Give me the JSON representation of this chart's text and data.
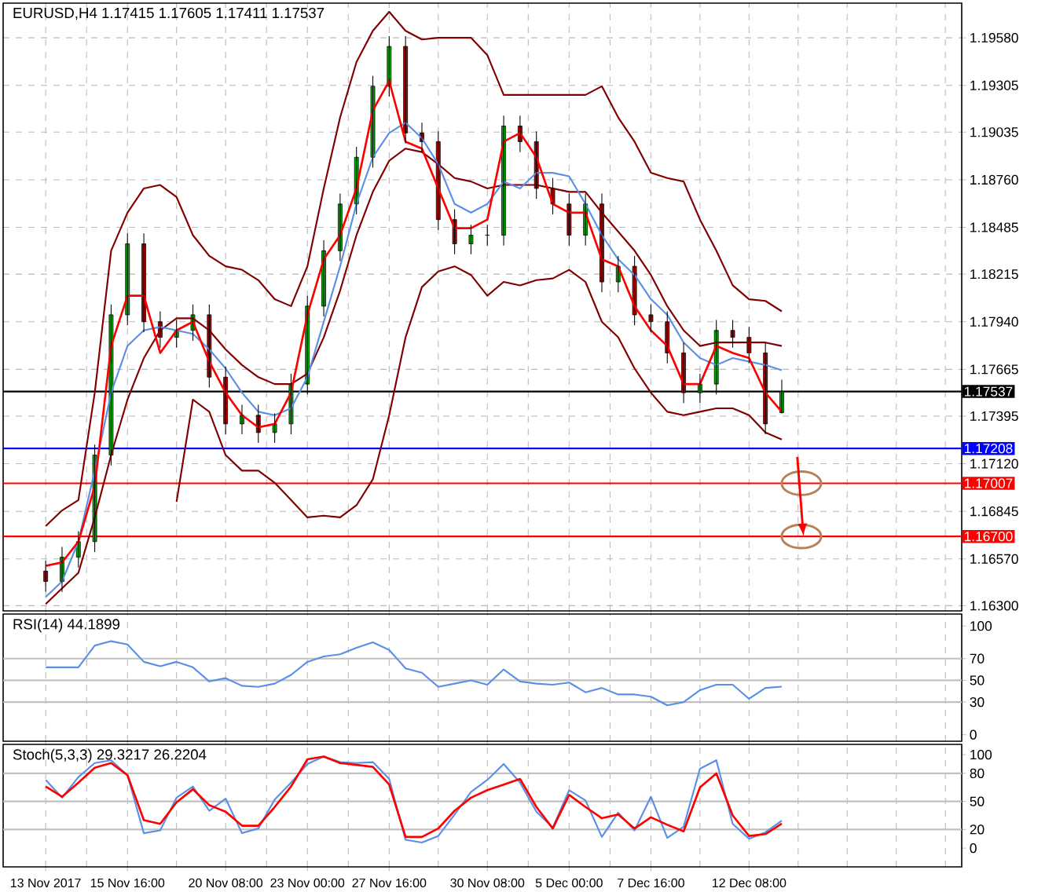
{
  "chart_data": [
    {
      "type": "candlestick",
      "title": "EURUSD,H4  1.17415 1.17605 1.17411 1.17537",
      "categories": [
        null,
        null,
        null,
        null,
        null,
        null,
        null,
        null,
        null,
        null,
        null,
        null,
        null,
        null,
        null,
        null,
        null,
        null,
        null,
        null,
        null,
        null,
        null,
        null,
        null,
        null,
        null,
        null,
        null,
        null,
        null,
        null,
        null,
        null,
        null,
        null,
        null,
        null,
        null,
        null,
        null,
        null,
        null,
        null,
        null,
        null
      ],
      "ohlc": [
        [
          1.165,
          1.1656,
          1.1638,
          1.1644
        ],
        [
          1.1644,
          1.1664,
          1.1638,
          1.1658
        ],
        [
          1.1658,
          1.1673,
          1.1652,
          1.1667
        ],
        [
          1.1667,
          1.1723,
          1.1661,
          1.1717
        ],
        [
          1.1717,
          1.1804,
          1.1711,
          1.1798
        ],
        [
          1.1798,
          1.1845,
          1.1792,
          1.1839
        ],
        [
          1.1839,
          1.1845,
          1.1788,
          1.1794
        ],
        [
          1.1794,
          1.18,
          1.1779,
          1.1785
        ],
        [
          1.1785,
          1.1795,
          1.1779,
          1.1789
        ],
        [
          1.1789,
          1.1804,
          1.1783,
          1.1798
        ],
        [
          1.1798,
          1.1804,
          1.1756,
          1.1762
        ],
        [
          1.1762,
          1.1768,
          1.1729,
          1.1735
        ],
        [
          1.1735,
          1.1746,
          1.1729,
          1.174
        ],
        [
          1.174,
          1.1746,
          1.1724,
          1.173
        ],
        [
          1.173,
          1.1741,
          1.1724,
          1.1735
        ],
        [
          1.1735,
          1.1764,
          1.1729,
          1.1758
        ],
        [
          1.1758,
          1.1809,
          1.1752,
          1.1803
        ],
        [
          1.1803,
          1.1841,
          1.1797,
          1.1835
        ],
        [
          1.1835,
          1.1868,
          1.1829,
          1.1862
        ],
        [
          1.1862,
          1.1895,
          1.1856,
          1.1889
        ],
        [
          1.1889,
          1.1936,
          1.1883,
          1.193
        ],
        [
          1.193,
          1.1959,
          1.1924,
          1.1953
        ],
        [
          1.1953,
          1.1959,
          1.1897,
          1.1903
        ],
        [
          1.1903,
          1.1909,
          1.1892,
          1.1898
        ],
        [
          1.1898,
          1.1904,
          1.1847,
          1.1853
        ],
        [
          1.1853,
          1.1859,
          1.1833,
          1.1839
        ],
        [
          1.1839,
          1.185,
          1.1833,
          1.1844
        ],
        [
          1.1844,
          1.185,
          1.1838,
          1.1844
        ],
        [
          1.1844,
          1.1913,
          1.1838,
          1.1907
        ],
        [
          1.1907,
          1.1913,
          1.1892,
          1.1898
        ],
        [
          1.1898,
          1.1904,
          1.1865,
          1.1871
        ],
        [
          1.1871,
          1.1877,
          1.1856,
          1.1862
        ],
        [
          1.1862,
          1.1868,
          1.1838,
          1.1844
        ],
        [
          1.1844,
          1.1868,
          1.1838,
          1.1862
        ],
        [
          1.1862,
          1.1868,
          1.1811,
          1.1817
        ],
        [
          1.1817,
          1.1832,
          1.1811,
          1.1826
        ],
        [
          1.1826,
          1.1832,
          1.1792,
          1.1798
        ],
        [
          1.1798,
          1.1804,
          1.1788,
          1.1794
        ],
        [
          1.1794,
          1.18,
          1.177,
          1.1776
        ],
        [
          1.1776,
          1.1782,
          1.1747,
          1.1753
        ],
        [
          1.1753,
          1.1764,
          1.1747,
          1.1758
        ],
        [
          1.1758,
          1.1795,
          1.1752,
          1.1789
        ],
        [
          1.1789,
          1.1795,
          1.1779,
          1.1785
        ],
        [
          1.1785,
          1.1791,
          1.177,
          1.1776
        ],
        [
          1.1776,
          1.1782,
          1.1729,
          1.1735
        ],
        [
          1.17415,
          1.17605,
          1.17411,
          1.17537
        ]
      ],
      "series": [
        {
          "type": "line",
          "color": "#800000",
          "values": [
            1.1676,
            1.1685,
            1.1691,
            1.1753,
            1.1835,
            1.1857,
            1.1871,
            1.1873,
            1.1866,
            1.1844,
            1.1832,
            1.1826,
            1.1824,
            1.1818,
            1.1807,
            1.1803,
            1.1826,
            1.1871,
            1.1912,
            1.1944,
            1.1962,
            1.1973,
            1.1962,
            1.1957,
            1.1958,
            1.1958,
            1.1958,
            1.1948,
            1.1925,
            1.1925,
            1.1925,
            1.1925,
            1.1925,
            1.1925,
            1.193,
            1.1912,
            1.1898,
            1.188,
            1.1877,
            1.1875,
            1.1853,
            1.1835,
            1.1815,
            1.1807,
            1.1806,
            1.18
          ]
        },
        {
          "type": "line",
          "color": "#800000",
          "values": [
            1.1631,
            1.164,
            1.1649,
            1.1681,
            1.1717,
            1.1749,
            1.1773,
            1.1789,
            1.1796,
            1.1796,
            1.1789,
            1.1778,
            1.1769,
            1.1762,
            1.1758,
            1.1758,
            1.1764,
            1.1785,
            1.1812,
            1.1844,
            1.1869,
            1.1887,
            1.1894,
            1.1892,
            1.1885,
            1.1877,
            1.1875,
            1.1871,
            1.1873,
            1.1873,
            1.1873,
            1.1871,
            1.1869,
            1.1869,
            1.1857,
            1.1846,
            1.1835,
            1.1821,
            1.1803,
            1.1789,
            1.178,
            1.1782,
            1.1782,
            1.1782,
            1.1782,
            1.178
          ]
        },
        {
          "type": "line",
          "color": "#800000",
          "values": [
            null,
            null,
            null,
            null,
            null,
            null,
            null,
            null,
            1.169,
            1.1749,
            1.1742,
            1.1717,
            1.1708,
            1.1708,
            1.1701,
            1.1691,
            1.1681,
            1.1682,
            1.1681,
            1.1688,
            1.1703,
            1.174,
            1.1785,
            1.1814,
            1.1823,
            1.1826,
            1.1821,
            1.1809,
            1.1817,
            1.1815,
            1.1818,
            1.1819,
            1.1824,
            1.1817,
            1.1794,
            1.1785,
            1.1767,
            1.1753,
            1.1742,
            1.174,
            1.1742,
            1.1744,
            1.1744,
            1.174,
            1.173,
            1.1726
          ]
        },
        {
          "type": "line",
          "color": "#5a8fe6",
          "values": [
            1.1635,
            1.1644,
            1.1667,
            1.1708,
            1.1753,
            1.178,
            1.1789,
            1.1791,
            1.1789,
            1.1787,
            1.1778,
            1.1767,
            1.1753,
            1.1742,
            1.174,
            1.1744,
            1.1762,
            1.1794,
            1.1826,
            1.1862,
            1.1889,
            1.1903,
            1.1909,
            1.19,
            1.1885,
            1.1862,
            1.1857,
            1.1862,
            1.1875,
            1.1871,
            1.188,
            1.188,
            1.1878,
            1.1862,
            1.1844,
            1.183,
            1.1821,
            1.1807,
            1.1798,
            1.1782,
            1.1773,
            1.1769,
            1.1773,
            1.1771,
            1.1769,
            1.1766
          ]
        },
        {
          "type": "line",
          "color": "#ff0000",
          "values": [
            1.1653,
            1.1655,
            1.1667,
            1.1699,
            1.178,
            1.1809,
            1.1809,
            1.1776,
            1.1789,
            1.1794,
            1.1771,
            1.1753,
            1.174,
            1.1733,
            1.1735,
            1.1753,
            1.1798,
            1.183,
            1.1844,
            1.1871,
            1.1916,
            1.1933,
            1.1898,
            1.1894,
            1.1871,
            1.1848,
            1.1848,
            1.1853,
            1.1898,
            1.1903,
            1.1889,
            1.1862,
            1.1857,
            1.1857,
            1.183,
            1.1826,
            1.1803,
            1.1789,
            1.178,
            1.1758,
            1.1758,
            1.178,
            1.1776,
            1.1773,
            1.1753,
            1.1742
          ]
        }
      ],
      "ref_lines": [
        {
          "axis": "y",
          "value": 1.17208,
          "label": "1.17208",
          "color": "#0000ff"
        },
        {
          "axis": "y",
          "value": 1.17007,
          "label": "1.17007",
          "color": "#ff0000"
        },
        {
          "axis": "y",
          "value": 1.167,
          "label": "1.16700",
          "color": "#ff0000"
        },
        {
          "axis": "y",
          "value": 1.17537,
          "label": "1.17537",
          "color": "#000000"
        }
      ],
      "ylim": [
        1.1627,
        1.1978
      ],
      "yticks": [
        {
          "value": 1.163,
          "label": "1.16300"
        },
        {
          "value": 1.1657,
          "label": "1.16570"
        },
        {
          "value": 1.16845,
          "label": "1.16845"
        },
        {
          "value": 1.1712,
          "label": "1.17120"
        },
        {
          "value": 1.17395,
          "label": "1.17395"
        },
        {
          "value": 1.17665,
          "label": "1.17665"
        },
        {
          "value": 1.1794,
          "label": "1.17940"
        },
        {
          "value": 1.18215,
          "label": "1.18215"
        },
        {
          "value": 1.18485,
          "label": "1.18485"
        },
        {
          "value": 1.1876,
          "label": "1.18760"
        },
        {
          "value": 1.19035,
          "label": "1.19035"
        },
        {
          "value": 1.19305,
          "label": "1.19305"
        },
        {
          "value": 1.1958,
          "label": "1.19580"
        }
      ],
      "grid": true,
      "tick_labels": "y"
    },
    {
      "type": "line",
      "title": "RSI(14) 44.1899",
      "color": "#5a8fe6",
      "categories": [
        null,
        null,
        null,
        null,
        null,
        null,
        null,
        null,
        null,
        null,
        null,
        null,
        null,
        null,
        null,
        null,
        null,
        null,
        null,
        null,
        null,
        null,
        null,
        null,
        null,
        null,
        null,
        null,
        null,
        null,
        null,
        null,
        null,
        null,
        null,
        null,
        null,
        null,
        null,
        null,
        null,
        null,
        null,
        null,
        null,
        null
      ],
      "values": [
        62,
        62,
        62,
        82,
        86,
        83,
        67,
        63,
        67,
        62,
        49,
        52,
        45,
        44,
        47,
        55,
        67,
        72,
        74,
        80,
        85,
        78,
        61,
        57,
        44,
        47,
        50,
        46,
        60,
        49,
        47,
        46,
        48,
        39,
        43,
        37,
        37,
        35,
        27,
        30,
        41,
        46,
        46,
        33,
        43,
        44.1899
      ],
      "ref_lines": [
        {
          "axis": "y",
          "value": 70,
          "color": "#c0c0c0"
        },
        {
          "axis": "y",
          "value": 50,
          "color": "#c0c0c0"
        },
        {
          "axis": "y",
          "value": 30,
          "color": "#c0c0c0"
        }
      ],
      "ylim": [
        -6,
        111
      ],
      "yticks": [
        0,
        30,
        50,
        70,
        100
      ],
      "grid": "x",
      "tick_labels": "y"
    },
    {
      "type": "line",
      "title": "Stoch(5,3,3) 29.3217 26.2204",
      "categories": [
        "13 Nov 2017",
        null,
        null,
        null,
        null,
        "15 Nov 16:00",
        null,
        null,
        null,
        null,
        null,
        "20 Nov 08:00",
        null,
        null,
        null,
        null,
        "23 Nov 00:00",
        null,
        null,
        null,
        null,
        "27 Nov 16:00",
        null,
        null,
        null,
        null,
        null,
        "30 Nov 08:00",
        null,
        null,
        null,
        null,
        "5 Dec 00:00",
        null,
        null,
        null,
        null,
        "7 Dec 16:00",
        null,
        null,
        null,
        null,
        null,
        "12 Dec 08:00",
        null,
        null
      ],
      "series": [
        {
          "color": "#5a8fe6",
          "values": [
            73,
            54,
            76,
            91,
            94,
            78,
            16,
            19,
            54,
            66,
            40,
            53,
            16,
            21,
            52,
            70,
            90,
            98,
            92,
            91,
            92,
            74,
            9,
            6,
            13,
            36,
            60,
            73,
            90,
            70,
            39,
            22,
            62,
            51,
            12,
            38,
            19,
            55,
            11,
            23,
            85,
            94,
            26,
            10,
            17,
            29.3217
          ]
        },
        {
          "color": "#ff0000",
          "values": [
            66,
            55,
            70,
            86,
            91,
            78,
            30,
            26,
            49,
            63,
            46,
            39,
            24,
            24,
            44,
            66,
            95,
            98,
            91,
            89,
            87,
            68,
            12,
            12,
            21,
            40,
            54,
            62,
            68,
            74,
            44,
            21,
            57,
            44,
            32,
            36,
            21,
            33,
            25,
            18,
            65,
            80,
            35,
            13,
            15,
            26.2204
          ]
        }
      ],
      "ref_lines": [
        {
          "axis": "y",
          "value": 80,
          "color": "#c0c0c0"
        },
        {
          "axis": "y",
          "value": 50,
          "color": "#c0c0c0"
        },
        {
          "axis": "y",
          "value": 20,
          "color": "#c0c0c0"
        }
      ],
      "ylim": [
        -20,
        111
      ],
      "yticks": [
        0,
        20,
        50,
        80,
        100
      ],
      "grid": "x"
    }
  ]
}
